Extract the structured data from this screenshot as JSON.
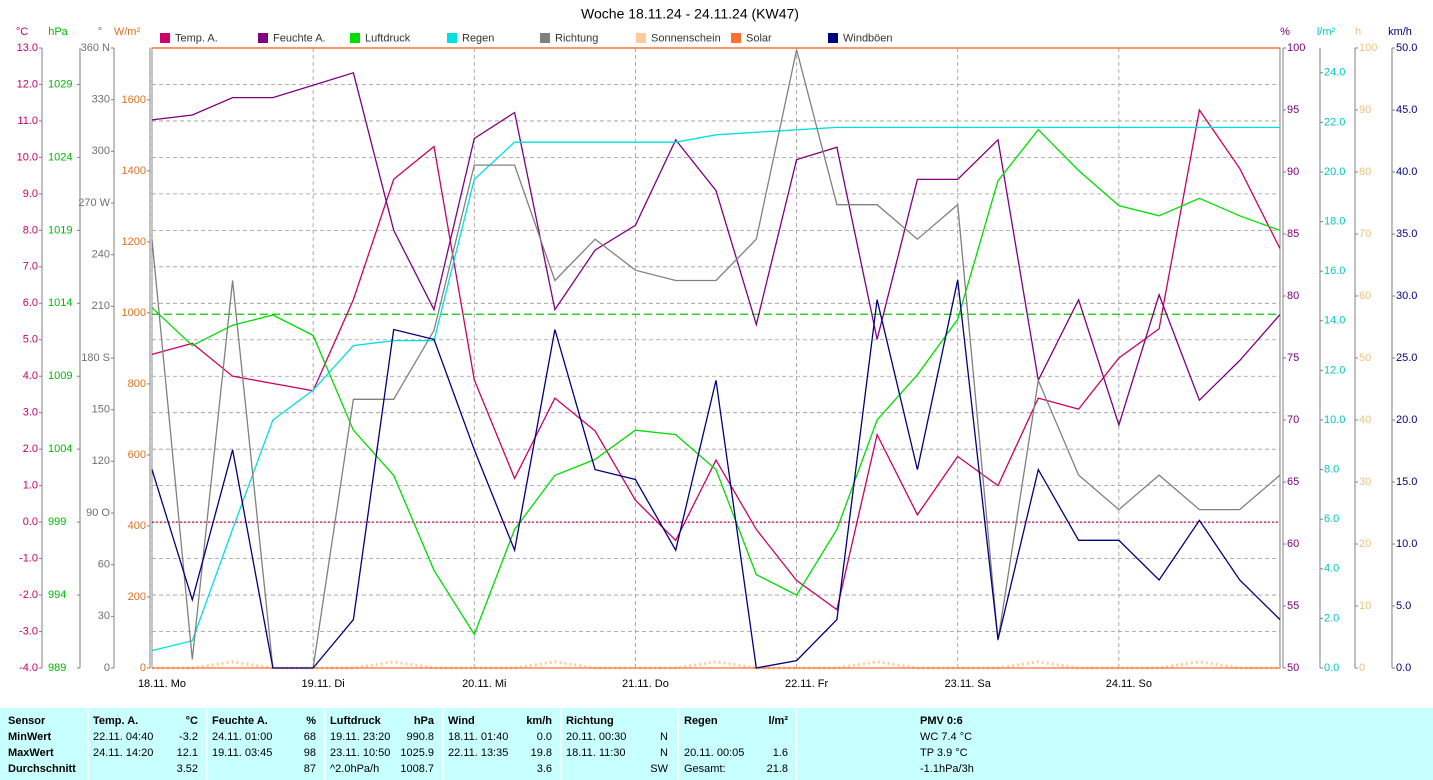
{
  "chart_data": {
    "type": "line",
    "title": "Woche 18.11.24 - 24.11.24 (KW47)",
    "x": [
      0,
      6,
      12,
      18,
      24,
      30,
      36,
      42,
      48,
      54,
      60,
      66,
      72,
      78,
      84,
      90,
      96,
      102,
      108,
      114,
      120,
      126,
      132,
      138,
      144,
      150,
      156,
      162,
      168
    ],
    "xlim": [
      0,
      168
    ],
    "xticks": [
      {
        "value": 0,
        "label": "18.11. Mo"
      },
      {
        "value": 24,
        "label": "19.11. Di"
      },
      {
        "value": 48,
        "label": "20.11. Mi"
      },
      {
        "value": 72,
        "label": "21.11. Do"
      },
      {
        "value": 96,
        "label": "22.11. Fr"
      },
      {
        "value": 120,
        "label": "23.11. Sa"
      },
      {
        "value": 144,
        "label": "24.11. So"
      }
    ],
    "grid": true,
    "axes": [
      {
        "id": "temp",
        "side": "left",
        "label": "°C",
        "color": "#cc0066",
        "lim": [
          -4,
          13
        ],
        "ticks": [
          {
            "value": -4,
            "label": "-4.0"
          },
          {
            "value": -3,
            "label": "-3.0"
          },
          {
            "value": -2,
            "label": "-2.0"
          },
          {
            "value": -1,
            "label": "-1.0"
          },
          {
            "value": 0,
            "label": "0.0"
          },
          {
            "value": 1,
            "label": "1.0"
          },
          {
            "value": 2,
            "label": "2.0"
          },
          {
            "value": 3,
            "label": "3.0"
          },
          {
            "value": 4,
            "label": "4.0"
          },
          {
            "value": 5,
            "label": "5.0"
          },
          {
            "value": 6,
            "label": "6.0"
          },
          {
            "value": 7,
            "label": "7.0"
          },
          {
            "value": 8,
            "label": "8.0"
          },
          {
            "value": 9,
            "label": "9.0"
          },
          {
            "value": 10,
            "label": "10.0"
          },
          {
            "value": 11,
            "label": "11.0"
          },
          {
            "value": 12,
            "label": "12.0"
          },
          {
            "value": 13,
            "label": "13.0"
          }
        ]
      },
      {
        "id": "hpa",
        "side": "left",
        "label": "hPa",
        "color": "#00bb00",
        "lim": [
          989,
          1031.5
        ],
        "ticks": [
          989,
          994,
          999,
          1004,
          1009,
          1014,
          1019,
          1024,
          1029
        ]
      },
      {
        "id": "deg",
        "side": "left",
        "label": "°",
        "color": "#707070",
        "lim": [
          0,
          360
        ],
        "ticks": [
          0,
          30,
          60,
          {
            "value": 90,
            "label": "90 O"
          },
          120,
          150,
          {
            "value": 180,
            "label": "180 S"
          },
          210,
          240,
          {
            "value": 270,
            "label": "270 W"
          },
          300,
          330,
          {
            "value": 360,
            "label": "360 N"
          }
        ]
      },
      {
        "id": "wm2",
        "side": "left",
        "label": "W/m²",
        "color": "#e07020",
        "lim": [
          0,
          1746
        ],
        "ticks": [
          0,
          200,
          400,
          600,
          800,
          1000,
          1200,
          1400,
          1600
        ]
      },
      {
        "id": "pct",
        "side": "right",
        "label": "%",
        "color": "#800080",
        "lim": [
          50,
          100
        ],
        "ticks": [
          50,
          55,
          60,
          65,
          70,
          75,
          80,
          85,
          90,
          95,
          100
        ]
      },
      {
        "id": "lm2",
        "side": "right",
        "label": "l/m²",
        "color": "#00c8c8",
        "lim": [
          0,
          25
        ],
        "ticks": [
          {
            "value": 0,
            "label": "0.0"
          },
          {
            "value": 2,
            "label": "2.0"
          },
          {
            "value": 4,
            "label": "4.0"
          },
          {
            "value": 6,
            "label": "6.0"
          },
          {
            "value": 8,
            "label": "8.0"
          },
          {
            "value": 10,
            "label": "10.0"
          },
          {
            "value": 12,
            "label": "12.0"
          },
          {
            "value": 14,
            "label": "14.0"
          },
          {
            "value": 16,
            "label": "16.0"
          },
          {
            "value": 18,
            "label": "18.0"
          },
          {
            "value": 20,
            "label": "20.0"
          },
          {
            "value": 22,
            "label": "22.0"
          },
          {
            "value": 24,
            "label": "24.0"
          }
        ]
      },
      {
        "id": "h",
        "side": "right",
        "label": "h",
        "color": "#f0c080",
        "lim": [
          0,
          100
        ],
        "ticks": [
          0,
          10,
          20,
          30,
          40,
          50,
          60,
          70,
          80,
          90,
          100
        ]
      },
      {
        "id": "kmh",
        "side": "right",
        "label": "km/h",
        "color": "#000080",
        "lim": [
          0,
          50
        ],
        "ticks": [
          {
            "value": 0,
            "label": "0.0"
          },
          {
            "value": 5,
            "label": "5.0"
          },
          {
            "value": 10,
            "label": "10.0"
          },
          {
            "value": 15,
            "label": "15.0"
          },
          {
            "value": 20,
            "label": "20.0"
          },
          {
            "value": 25,
            "label": "25.0"
          },
          {
            "value": 30,
            "label": "30.0"
          },
          {
            "value": 35,
            "label": "35.0"
          },
          {
            "value": 40,
            "label": "40.0"
          },
          {
            "value": 45,
            "label": "45.0"
          },
          {
            "value": 50,
            "label": "50.0"
          }
        ]
      }
    ],
    "reference_lines": [
      {
        "axis": "hpa",
        "value": 1013.25,
        "color": "#00cc00",
        "style": "dashed"
      },
      {
        "axis": "temp",
        "value": 0,
        "color": "#cc0066",
        "style": "dotted"
      }
    ],
    "series": [
      {
        "name": "Temp. A.",
        "color": "#cc0066",
        "axis": "temp",
        "values": [
          4.6,
          4.9,
          4.0,
          3.8,
          3.6,
          6.1,
          9.4,
          10.3,
          3.9,
          1.2,
          3.4,
          2.5,
          0.6,
          -0.5,
          1.7,
          -0.2,
          -1.6,
          -2.4,
          2.4,
          0.2,
          1.8,
          1.0,
          3.4,
          3.1,
          4.5,
          5.3,
          11.3,
          9.7,
          7.5
        ]
      },
      {
        "name": "Feuchte A.",
        "color": "#800080",
        "axis": "pct",
        "values": [
          94.2,
          94.6,
          96,
          96,
          97,
          98,
          85.3,
          78.9,
          92.7,
          94.8,
          78.9,
          83.7,
          85.7,
          92.6,
          88.5,
          77.7,
          91,
          92,
          76.5,
          89.4,
          89.4,
          92.6,
          73.2,
          79.7,
          69.6,
          80.1,
          71.6,
          74.8,
          78.5
        ]
      },
      {
        "name": "Luftdruck",
        "color": "#00dd00",
        "axis": "hpa",
        "values": [
          1013.7,
          1011.1,
          1012.5,
          1013.2,
          1011.8,
          1005.3,
          1002.2,
          995.7,
          991.3,
          998.5,
          1002.2,
          1003.3,
          1005.3,
          1005.0,
          1002.6,
          995.4,
          994.0,
          998.5,
          1006.0,
          1009.1,
          1012.9,
          1022.4,
          1025.9,
          1023.1,
          1020.7,
          1020.0,
          1021.2,
          1020.0,
          1019.0
        ]
      },
      {
        "name": "Regen",
        "color": "#00e0e0",
        "axis": "lm2",
        "values": [
          0.7,
          1.1,
          5.6,
          10.0,
          11.2,
          13.0,
          13.2,
          13.2,
          19.7,
          21.2,
          21.2,
          21.2,
          21.2,
          21.2,
          21.5,
          21.6,
          21.7,
          21.8,
          21.8,
          21.8,
          21.8,
          21.8,
          21.8,
          21.8,
          21.8,
          21.8,
          21.8,
          21.8,
          21.8
        ]
      },
      {
        "name": "Richtung",
        "color": "#808080",
        "axis": "deg",
        "values": [
          249,
          5,
          225,
          0,
          0,
          156,
          156,
          196,
          292,
          292,
          225,
          249,
          231,
          225,
          225,
          249,
          359,
          269,
          269,
          249,
          269,
          16,
          167,
          112,
          92,
          112,
          92,
          92,
          112
        ]
      },
      {
        "name": "Sonnenschein",
        "color": "#ffcc99",
        "axis": "h",
        "values": [
          0,
          0,
          1,
          0,
          0,
          0,
          1,
          0,
          0,
          0,
          1,
          0,
          0,
          0,
          1,
          0,
          0,
          0,
          1,
          0,
          0,
          0,
          1,
          0,
          0,
          0,
          1,
          0,
          0
        ]
      },
      {
        "name": "Solar",
        "color": "#ff7030",
        "axis": "wm2",
        "values": [
          0,
          0,
          0,
          0,
          0,
          0,
          0,
          0,
          0,
          0,
          0,
          0,
          0,
          0,
          0,
          0,
          0,
          0,
          0,
          0,
          0,
          0,
          0,
          0,
          0,
          0,
          0,
          0,
          0
        ]
      },
      {
        "name": "Windböen",
        "color": "#000080",
        "axis": "kmh",
        "values": [
          16,
          5.5,
          17.6,
          0,
          0,
          3.9,
          27.3,
          26.5,
          17.6,
          9.5,
          27.3,
          16,
          15.2,
          9.5,
          23.2,
          0,
          0.6,
          3.9,
          29.7,
          16,
          31.3,
          2.3,
          16,
          10.3,
          10.3,
          7.1,
          11.9,
          7.1,
          3.9
        ]
      }
    ]
  },
  "table": {
    "header": [
      "Sensor",
      "Temp. A.",
      "°C",
      "Feuchte A.",
      "%",
      "Luftdruck",
      "hPa",
      "Wind",
      "km/h",
      "Richtung",
      null,
      "Regen",
      "l/m²",
      "PMV 0:6"
    ],
    "rows": [
      [
        "MinWert",
        "22.11.  04:40",
        "-3.2",
        "24.11.  01:00",
        "68",
        "19.11.  23:20",
        "990.8",
        "18.11.  01:40",
        "0.0",
        "20.11.  00:30",
        "N",
        null,
        null,
        "WC 7.4 °C"
      ],
      [
        "MaxWert",
        "24.11.  14:20",
        "12.1",
        "19.11.  03:45",
        "98",
        "23.11.  10:50",
        "1025.9",
        "22.11.  13:35",
        "19.8",
        "18.11.  11:30",
        "N",
        "20.11.  00:05",
        "1.6",
        "TP 3.9 °C"
      ],
      [
        "Durchschnitt",
        null,
        "3.52",
        null,
        "87",
        "^2.0hPa/h",
        "1008.7",
        null,
        "3.6",
        null,
        "SW",
        "Gesamt:",
        "21.8",
        "-1.1hPa/3h"
      ]
    ]
  }
}
